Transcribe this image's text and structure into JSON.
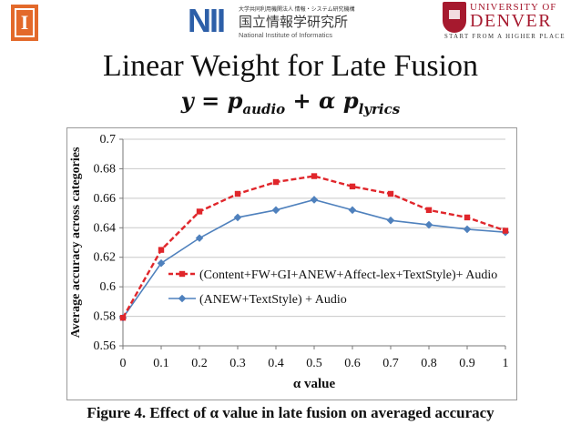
{
  "logos": {
    "illinois": {
      "letter": "I",
      "color": "#e3692a"
    },
    "nii": {
      "mark": "NII",
      "top_line": "大学共同利用機関法人 情報・システム研究機構",
      "japanese": "国立情報学研究所",
      "english": "National Institute of Informatics",
      "color": "#2d5fa8"
    },
    "denver": {
      "line1": "UNIVERSITY OF",
      "line2": "DENVER",
      "tagline": "START FROM A HIGHER PLACE",
      "color": "#a6192e"
    }
  },
  "slide": {
    "title": "Linear Weight for Late Fusion",
    "formula": {
      "y": "y",
      "eq": " = ",
      "p1": "p",
      "s1": "audio",
      "plus": " + ",
      "alpha": "α",
      "p2": " p",
      "s2": "lyrics"
    },
    "caption": "Figure 4. Effect of α value in late fusion on averaged accuracy"
  },
  "chart_data": {
    "type": "line",
    "xlabel": "α value",
    "ylabel": "Average accuracy across categories",
    "x": [
      0,
      0.1,
      0.2,
      0.3,
      0.4,
      0.5,
      0.6,
      0.7,
      0.8,
      0.9,
      1
    ],
    "x_tick_labels": [
      "0",
      "0.1",
      "0.2",
      "0.3",
      "0.4",
      "0.5",
      "0.6",
      "0.7",
      "0.8",
      "0.9",
      "1"
    ],
    "y_ticks": [
      0.56,
      0.58,
      0.6,
      0.62,
      0.64,
      0.66,
      0.68,
      0.7
    ],
    "y_tick_labels": [
      "0.56",
      "0.58",
      "0.6",
      "0.62",
      "0.64",
      "0.66",
      "0.68",
      "0.7"
    ],
    "ylim": [
      0.56,
      0.7
    ],
    "xlim": [
      0,
      1
    ],
    "grid": "horizontal",
    "legend_position": "bottom-left",
    "series": [
      {
        "name": "(Content+FW+GI+ANEW+Affect-lex+TextStyle)+ Audio",
        "values": [
          0.579,
          0.625,
          0.651,
          0.663,
          0.671,
          0.675,
          0.668,
          0.663,
          0.652,
          0.647,
          0.638
        ],
        "color": "#e0262b",
        "style": "dashed",
        "marker": "square"
      },
      {
        "name": "(ANEW+TextStyle) + Audio",
        "values": [
          0.579,
          0.616,
          0.633,
          0.647,
          0.652,
          0.659,
          0.652,
          0.645,
          0.642,
          0.639,
          0.637
        ],
        "color": "#4f81bd",
        "style": "solid",
        "marker": "diamond"
      }
    ]
  }
}
